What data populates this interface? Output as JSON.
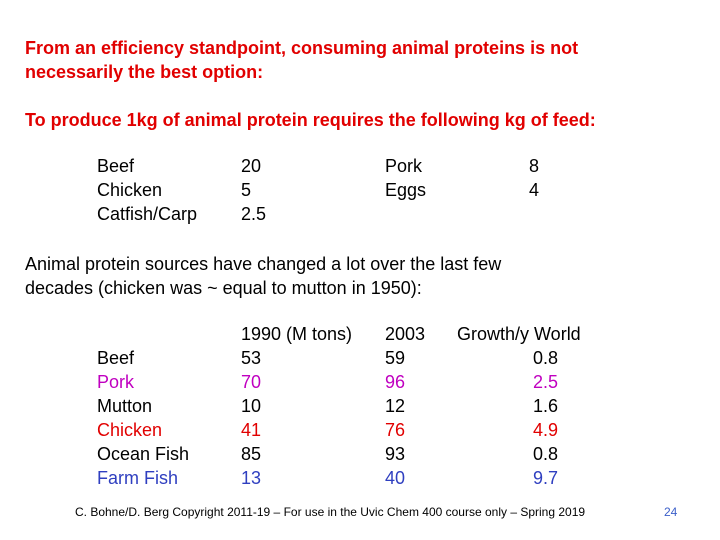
{
  "intro": {
    "line1": "From an efficiency standpoint, consuming animal proteins is not",
    "line2": "necessarily the best option:",
    "line3": "To produce 1kg of animal protein requires the following kg of feed:"
  },
  "feed": {
    "left": [
      {
        "name": "Beef",
        "value": "20"
      },
      {
        "name": "Chicken",
        "value": "5"
      },
      {
        "name": "Catfish/Carp",
        "value": "2.5"
      }
    ],
    "right": [
      {
        "name": "Pork",
        "value": "8"
      },
      {
        "name": "Eggs",
        "value": "4"
      }
    ]
  },
  "change": {
    "line1": "Animal protein sources have changed a lot over the last few",
    "line2": "decades (chicken was ~ equal to mutton in 1950):"
  },
  "table": {
    "headers": {
      "y1990": "1990 (M tons)",
      "y2003": "2003",
      "growth": "Growth/y World"
    },
    "rows": [
      {
        "name": "Beef",
        "y1990": "53",
        "y2003": "59",
        "growth": "0.8",
        "color": "#000000"
      },
      {
        "name": "Pork",
        "y1990": "70",
        "y2003": "96",
        "growth": "2.5",
        "color": "#c000c0"
      },
      {
        "name": "Mutton",
        "y1990": "10",
        "y2003": "12",
        "growth": "1.6",
        "color": "#000000"
      },
      {
        "name": "Chicken",
        "y1990": "41",
        "y2003": "76",
        "growth": "4.9",
        "color": "#e10000"
      },
      {
        "name": "Ocean Fish",
        "y1990": "85",
        "y2003": "93",
        "growth": "0.8",
        "color": "#000000"
      },
      {
        "name": "Farm Fish",
        "y1990": "13",
        "y2003": "40",
        "growth": "9.7",
        "color": "#2f3fc0"
      }
    ]
  },
  "footer": {
    "text": "C. Bohne/D. Berg Copyright 2011-19 – For use in the Uvic Chem 400 course only – Spring 2019",
    "page": "24"
  }
}
